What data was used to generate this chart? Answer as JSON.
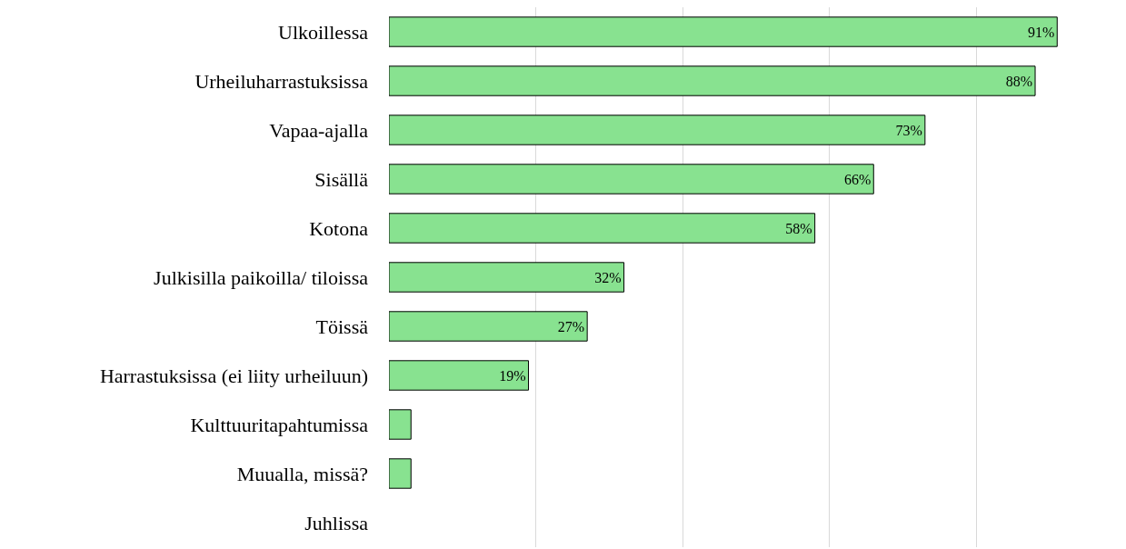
{
  "chart_data": {
    "type": "bar",
    "orientation": "horizontal",
    "categories": [
      "Ulkoillessa",
      "Urheiluharrastuksissa",
      "Vapaa-ajalla",
      "Sisällä",
      "Kotona",
      "Julkisilla paikoilla/ tiloissa",
      "Töissä",
      "Harrastuksissa (ei liity urheiluun)",
      "Kulttuuritapahtumissa",
      "Muualla, missä?",
      "Juhlissa"
    ],
    "values": [
      91,
      88,
      73,
      66,
      58,
      32,
      27,
      19,
      3,
      3,
      0
    ],
    "value_labels": [
      "91%",
      "88%",
      "73%",
      "66%",
      "58%",
      "32%",
      "27%",
      "19%",
      null,
      null,
      null
    ],
    "color": "#88e290",
    "xlim": [
      0,
      100
    ],
    "grid": "x",
    "tick_labels": "y"
  }
}
